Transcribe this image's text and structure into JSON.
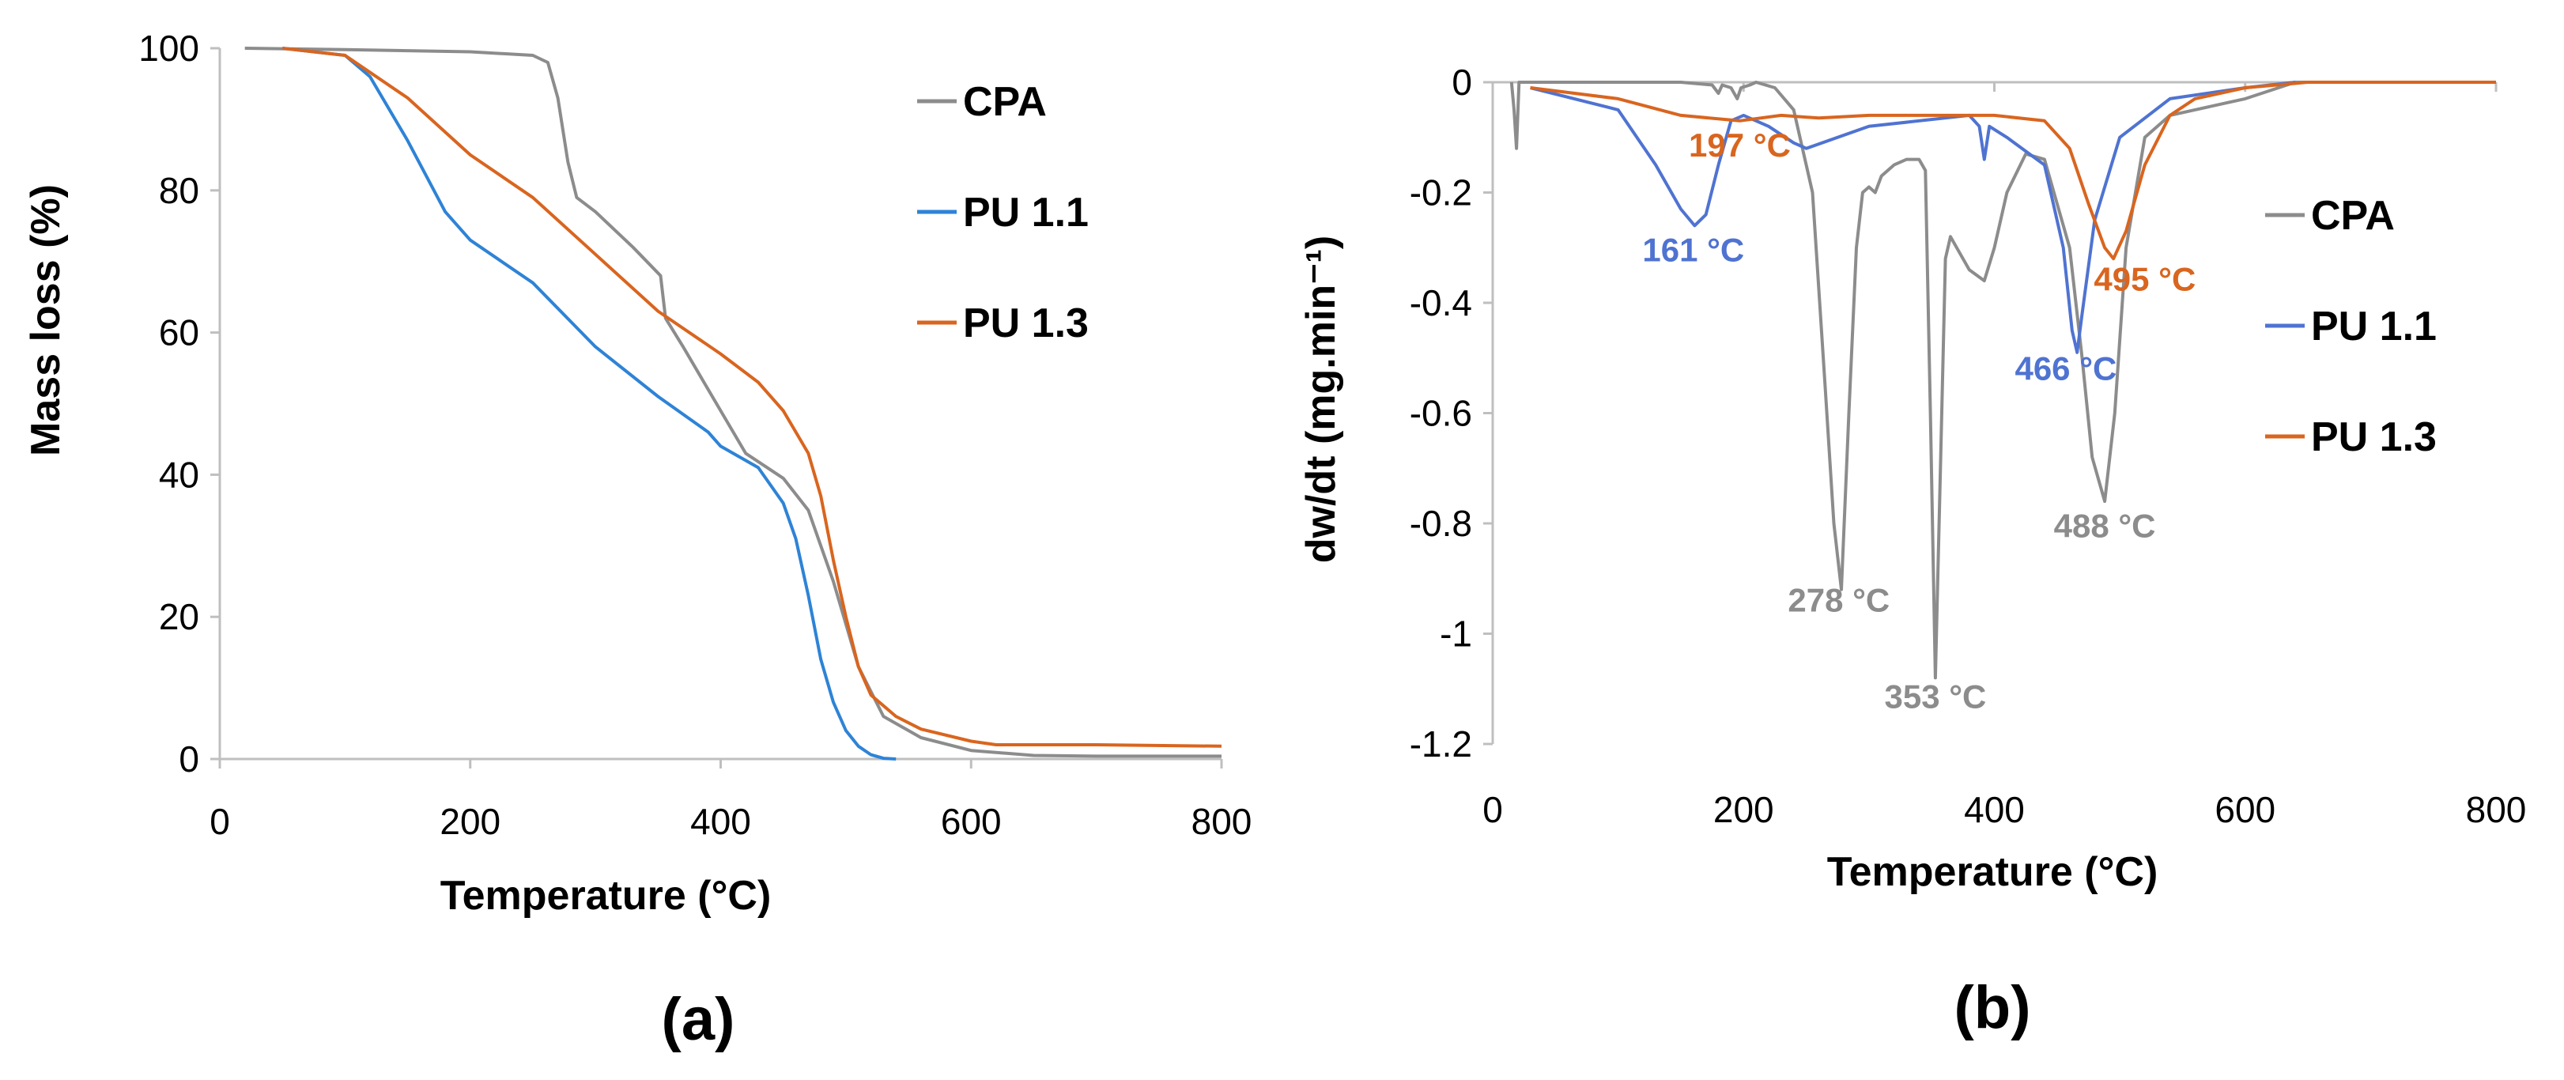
{
  "colors": {
    "CPA": "#8c8c8c",
    "PU 1.1": "#2e83d6",
    "PU 1.3": "#d9651f",
    "PU 1.1 (b)": "#4f73d1"
  },
  "chart_data": [
    {
      "type": "line",
      "panel": "(a)",
      "title": "",
      "xlabel": "Temperature (°C)",
      "ylabel": "Mass loss (%)",
      "xlim": [
        0,
        800
      ],
      "ylim": [
        0,
        100
      ],
      "xticks": [
        0,
        200,
        400,
        600,
        800
      ],
      "yticks": [
        0,
        20,
        40,
        60,
        80,
        100
      ],
      "legend_position": "right",
      "series": [
        {
          "name": "CPA",
          "color_key": "CPA",
          "x": [
            20,
            100,
            200,
            250,
            262,
            270,
            278,
            285,
            300,
            330,
            352,
            356,
            370,
            400,
            420,
            450,
            470,
            490,
            510,
            530,
            560,
            600,
            650,
            700,
            800
          ],
          "y": [
            100,
            99.8,
            99.5,
            99,
            98,
            93,
            84,
            79,
            77,
            72,
            68,
            62,
            58,
            49,
            43,
            39.5,
            35,
            25,
            13,
            6,
            3,
            1.2,
            0.5,
            0.4,
            0.4
          ]
        },
        {
          "name": "PU 1.1",
          "color_key": "PU 1.1",
          "x": [
            50,
            100,
            120,
            150,
            180,
            200,
            250,
            300,
            350,
            390,
            400,
            430,
            450,
            460,
            470,
            480,
            490,
            500,
            510,
            520,
            530,
            540
          ],
          "y": [
            100,
            99,
            96,
            87,
            77,
            73,
            67,
            58,
            51,
            46,
            44,
            41,
            36,
            31,
            23,
            14,
            8,
            4,
            1.8,
            0.6,
            0.1,
            0
          ]
        },
        {
          "name": "PU 1.3",
          "color_key": "PU 1.3",
          "x": [
            50,
            100,
            150,
            200,
            250,
            300,
            350,
            400,
            430,
            450,
            470,
            480,
            490,
            500,
            510,
            520,
            540,
            560,
            600,
            620,
            700,
            800
          ],
          "y": [
            100,
            99,
            93,
            85,
            79,
            71,
            63,
            57,
            53,
            49,
            43,
            37,
            28,
            20,
            13,
            9,
            6,
            4.2,
            2.5,
            2,
            2,
            1.8
          ]
        }
      ]
    },
    {
      "type": "line",
      "panel": "(b)",
      "title": "",
      "xlabel": "Temperature (°C)",
      "ylabel": "dw/dt (mg.min⁻¹)",
      "xlim": [
        0,
        800
      ],
      "ylim": [
        -1.2,
        0
      ],
      "xticks": [
        0,
        200,
        400,
        600,
        800
      ],
      "yticks": [
        0,
        -0.2,
        -0.4,
        -0.6,
        -0.8,
        -1,
        -1.2
      ],
      "ytick_labels": [
        "0",
        "-0.2",
        "-0.4",
        "-0.6",
        "-0.8",
        "-1",
        "-1.2"
      ],
      "legend_position": "right",
      "series": [
        {
          "name": "CPA",
          "color_key": "CPA",
          "x": [
            15,
            17,
            19,
            21,
            40,
            100,
            150,
            175,
            180,
            183,
            190,
            195,
            198,
            205,
            210,
            225,
            240,
            255,
            265,
            272,
            278,
            284,
            290,
            295,
            300,
            305,
            310,
            320,
            330,
            340,
            345,
            349,
            353,
            357,
            361,
            365,
            370,
            380,
            392,
            400,
            410,
            425,
            440,
            460,
            470,
            478,
            488,
            496,
            505,
            520,
            540,
            560,
            600,
            640,
            700,
            800
          ],
          "y": [
            0,
            -0.05,
            -0.12,
            0,
            0,
            0,
            0,
            -0.005,
            -0.02,
            -0.005,
            -0.01,
            -0.03,
            -0.01,
            -0.005,
            0,
            -0.01,
            -0.05,
            -0.2,
            -0.55,
            -0.8,
            -0.92,
            -0.6,
            -0.3,
            -0.2,
            -0.19,
            -0.2,
            -0.17,
            -0.15,
            -0.14,
            -0.14,
            -0.16,
            -0.6,
            -1.08,
            -0.7,
            -0.32,
            -0.28,
            -0.3,
            -0.34,
            -0.36,
            -0.3,
            -0.2,
            -0.13,
            -0.14,
            -0.3,
            -0.5,
            -0.68,
            -0.76,
            -0.6,
            -0.3,
            -0.1,
            -0.06,
            -0.05,
            -0.03,
            0,
            0,
            0
          ]
        },
        {
          "name": "PU 1.1",
          "color_key": "PU 1.1 (b)",
          "x": [
            30,
            100,
            130,
            150,
            161,
            170,
            180,
            190,
            200,
            220,
            240,
            250,
            300,
            380,
            388,
            392,
            396,
            410,
            440,
            455,
            462,
            466,
            470,
            480,
            500,
            540,
            600,
            640
          ],
          "y": [
            -0.01,
            -0.05,
            -0.15,
            -0.23,
            -0.26,
            -0.24,
            -0.15,
            -0.07,
            -0.06,
            -0.08,
            -0.11,
            -0.12,
            -0.08,
            -0.06,
            -0.08,
            -0.14,
            -0.08,
            -0.1,
            -0.15,
            -0.3,
            -0.45,
            -0.49,
            -0.42,
            -0.25,
            -0.1,
            -0.03,
            -0.01,
            0
          ]
        },
        {
          "name": "PU 1.3",
          "color_key": "PU 1.3",
          "x": [
            30,
            100,
            150,
            197,
            230,
            260,
            300,
            350,
            400,
            440,
            460,
            475,
            488,
            495,
            505,
            520,
            540,
            560,
            600,
            650,
            800
          ],
          "y": [
            -0.01,
            -0.03,
            -0.06,
            -0.07,
            -0.06,
            -0.065,
            -0.06,
            -0.06,
            -0.06,
            -0.07,
            -0.12,
            -0.22,
            -0.3,
            -0.32,
            -0.27,
            -0.15,
            -0.06,
            -0.03,
            -0.01,
            0,
            0
          ]
        }
      ],
      "annotations": [
        {
          "text": "197 °C",
          "x": 197,
          "y": -0.135,
          "color_key": "PU 1.3"
        },
        {
          "text": "161 °C",
          "x": 160,
          "y": -0.325,
          "color_key": "PU 1.1 (b)"
        },
        {
          "text": "278 °C",
          "x": 276,
          "y": -0.96,
          "color_key": "CPA"
        },
        {
          "text": "353 °C",
          "x": 353,
          "y": -1.135,
          "color_key": "CPA"
        },
        {
          "text": "488 °C",
          "x": 488,
          "y": -0.825,
          "color_key": "CPA"
        },
        {
          "text": "466 °C",
          "x": 457,
          "y": -0.54,
          "color_key": "PU 1.1 (b)"
        },
        {
          "text": "495 °C",
          "x": 520,
          "y": -0.378,
          "color_key": "PU 1.3"
        }
      ]
    }
  ]
}
